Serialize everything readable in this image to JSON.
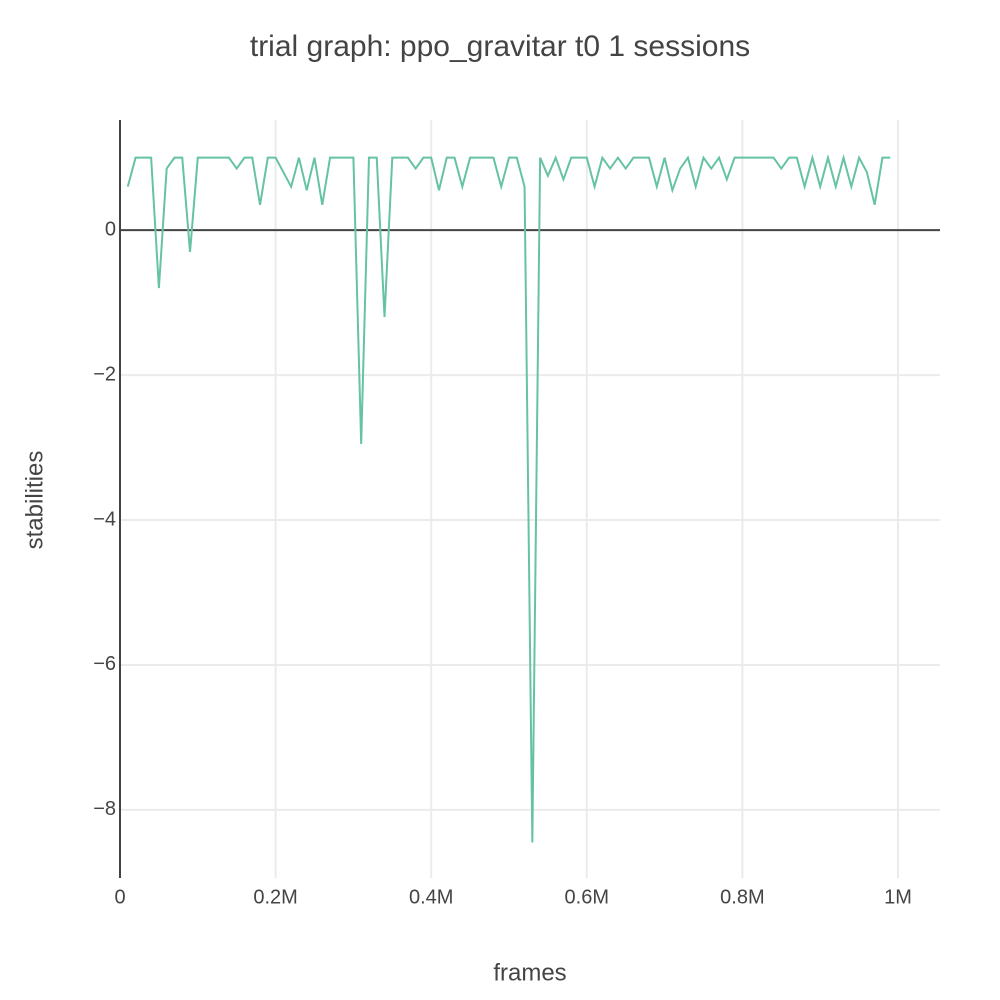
{
  "chart_data": {
    "type": "line",
    "title": "trial graph: ppo_gravitar t0 1 sessions",
    "x_label": "frames",
    "y_label": "stabilities",
    "x": [
      10000,
      20000,
      30000,
      40000,
      50000,
      60000,
      70000,
      80000,
      90000,
      100000,
      110000,
      120000,
      130000,
      140000,
      150000,
      160000,
      170000,
      180000,
      190000,
      200000,
      210000,
      220000,
      230000,
      240000,
      250000,
      260000,
      270000,
      280000,
      290000,
      300000,
      310000,
      320000,
      330000,
      340000,
      350000,
      360000,
      370000,
      380000,
      390000,
      400000,
      410000,
      420000,
      430000,
      440000,
      450000,
      460000,
      470000,
      480000,
      490000,
      500000,
      510000,
      520000,
      530000,
      540000,
      550000,
      560000,
      570000,
      580000,
      590000,
      600000,
      610000,
      620000,
      630000,
      640000,
      650000,
      660000,
      670000,
      680000,
      690000,
      700000,
      710000,
      720000,
      730000,
      740000,
      750000,
      760000,
      770000,
      780000,
      790000,
      800000,
      810000,
      820000,
      830000,
      840000,
      850000,
      860000,
      870000,
      880000,
      890000,
      900000,
      910000,
      920000,
      930000,
      940000,
      950000,
      960000,
      970000,
      980000,
      990000
    ],
    "series": [
      {
        "name": "stabilities",
        "color": "#66c2a5",
        "values": [
          0.6,
          1,
          1,
          1,
          -0.8,
          0.85,
          1,
          1,
          -0.3,
          1,
          1,
          1,
          1,
          1,
          0.85,
          1,
          1,
          0.35,
          1,
          1,
          0.8,
          0.6,
          1,
          0.55,
          1,
          0.35,
          1,
          1,
          1,
          1,
          -2.95,
          1,
          1,
          -1.2,
          1,
          1,
          1,
          0.85,
          1,
          1,
          0.55,
          1,
          1,
          0.6,
          1,
          1,
          1,
          1,
          0.6,
          1,
          1,
          0.6,
          -8.45,
          1,
          0.75,
          1,
          0.7,
          1,
          1,
          1,
          0.6,
          1,
          0.85,
          1,
          0.85,
          1,
          1,
          1,
          0.6,
          1,
          0.55,
          0.85,
          1,
          0.6,
          1,
          0.85,
          1,
          0.7,
          1,
          1,
          1,
          1,
          1,
          1,
          0.85,
          1,
          1,
          0.6,
          1,
          0.6,
          1,
          0.6,
          1,
          0.6,
          1,
          0.8,
          0.35,
          1,
          1
        ]
      }
    ],
    "xlim": [
      0,
      1054000
    ],
    "ylim": [
      -8.94,
      1.52
    ],
    "xticks": [
      0,
      {
        "value": 200000,
        "label": "0.2M"
      },
      {
        "value": 400000,
        "label": "0.4M"
      },
      {
        "value": 600000,
        "label": "0.6M"
      },
      {
        "value": 800000,
        "label": "0.8M"
      },
      {
        "value": 1000000,
        "label": "1M"
      }
    ],
    "yticks": [
      0,
      {
        "value": -2,
        "label": "−2"
      },
      {
        "value": -4,
        "label": "−4"
      },
      {
        "value": -6,
        "label": "−6"
      },
      {
        "value": -8,
        "label": "−8"
      }
    ],
    "grid": true
  }
}
